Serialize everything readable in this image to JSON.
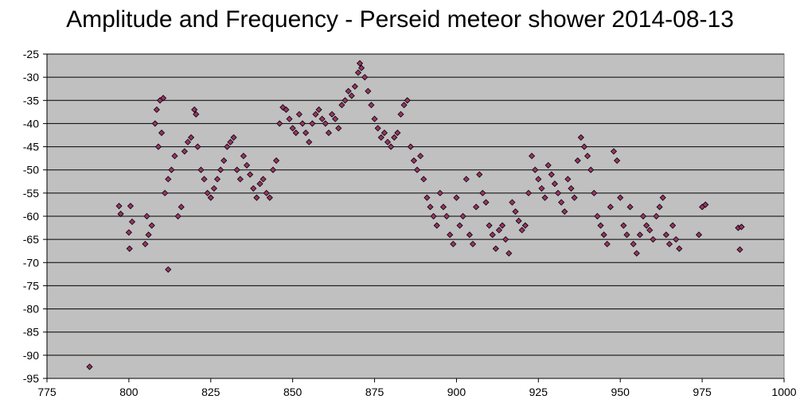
{
  "chart_data": {
    "type": "scatter",
    "title": "Amplitude and Frequency - Perseid meteor shower 2014-08-13",
    "xlabel": "",
    "ylabel": "",
    "xlim": [
      775,
      1000
    ],
    "ylim": [
      -95,
      -25
    ],
    "xticks": [
      775,
      800,
      825,
      850,
      875,
      900,
      925,
      950,
      975,
      1000
    ],
    "yticks": [
      -25,
      -30,
      -35,
      -40,
      -45,
      -50,
      -55,
      -60,
      -65,
      -70,
      -75,
      -80,
      -85,
      -90,
      -95
    ],
    "grid": "horizontal",
    "legend": "none",
    "plot_background": "#c0c0c0",
    "marker_fill": "#993366",
    "marker_edge": "#000000",
    "series": [
      {
        "points": [
          [
            788,
            -92.5
          ],
          [
            797,
            -57.8
          ],
          [
            797.5,
            -59.5
          ],
          [
            800,
            -63.5
          ],
          [
            800.2,
            -67
          ],
          [
            801,
            -61.2
          ],
          [
            800.5,
            -57.8
          ],
          [
            812,
            -71.5
          ],
          [
            805,
            -66
          ],
          [
            805.5,
            -60
          ],
          [
            806,
            -64
          ],
          [
            807,
            -62
          ],
          [
            808,
            -40
          ],
          [
            808.5,
            -37
          ],
          [
            809,
            -45
          ],
          [
            809.5,
            -35
          ],
          [
            810,
            -42
          ],
          [
            810.5,
            -34.5
          ],
          [
            811,
            -55
          ],
          [
            812,
            -52
          ],
          [
            813,
            -50
          ],
          [
            814,
            -47
          ],
          [
            815,
            -60
          ],
          [
            816,
            -58
          ],
          [
            817,
            -46
          ],
          [
            818,
            -44
          ],
          [
            819,
            -43
          ],
          [
            820,
            -37
          ],
          [
            820.5,
            -38
          ],
          [
            821,
            -45
          ],
          [
            822,
            -50
          ],
          [
            823,
            -52
          ],
          [
            824,
            -55
          ],
          [
            825,
            -56
          ],
          [
            826,
            -54
          ],
          [
            827,
            -52
          ],
          [
            828,
            -50
          ],
          [
            829,
            -48
          ],
          [
            830,
            -45
          ],
          [
            831,
            -44
          ],
          [
            832,
            -43
          ],
          [
            833,
            -50
          ],
          [
            834,
            -52
          ],
          [
            835,
            -47
          ],
          [
            836,
            -49
          ],
          [
            837,
            -51
          ],
          [
            838,
            -54
          ],
          [
            839,
            -56
          ],
          [
            840,
            -53
          ],
          [
            841,
            -52
          ],
          [
            842,
            -55
          ],
          [
            843,
            -56
          ],
          [
            844,
            -50
          ],
          [
            845,
            -48
          ],
          [
            846,
            -40
          ],
          [
            847,
            -36.5
          ],
          [
            848,
            -37
          ],
          [
            849,
            -39
          ],
          [
            850,
            -41
          ],
          [
            851,
            -42
          ],
          [
            852,
            -38
          ],
          [
            853,
            -40
          ],
          [
            854,
            -42
          ],
          [
            855,
            -44
          ],
          [
            856,
            -40
          ],
          [
            857,
            -38
          ],
          [
            858,
            -37
          ],
          [
            859,
            -39
          ],
          [
            860,
            -40
          ],
          [
            861,
            -42
          ],
          [
            862,
            -38
          ],
          [
            863,
            -39
          ],
          [
            864,
            -41
          ],
          [
            865,
            -36
          ],
          [
            866,
            -35
          ],
          [
            867,
            -33
          ],
          [
            868,
            -34
          ],
          [
            869,
            -32
          ],
          [
            870,
            -29
          ],
          [
            870.5,
            -27
          ],
          [
            871,
            -28
          ],
          [
            872,
            -30
          ],
          [
            873,
            -33
          ],
          [
            874,
            -36
          ],
          [
            875,
            -39
          ],
          [
            876,
            -41
          ],
          [
            877,
            -43
          ],
          [
            878,
            -42
          ],
          [
            879,
            -44
          ],
          [
            880,
            -45
          ],
          [
            881,
            -43
          ],
          [
            882,
            -42
          ],
          [
            883,
            -38
          ],
          [
            884,
            -36
          ],
          [
            885,
            -35
          ],
          [
            886,
            -45
          ],
          [
            887,
            -48
          ],
          [
            888,
            -50
          ],
          [
            889,
            -47
          ],
          [
            890,
            -52
          ],
          [
            891,
            -56
          ],
          [
            892,
            -58
          ],
          [
            893,
            -60
          ],
          [
            894,
            -62
          ],
          [
            895,
            -55
          ],
          [
            896,
            -58
          ],
          [
            897,
            -60
          ],
          [
            898,
            -64
          ],
          [
            899,
            -66
          ],
          [
            900,
            -56
          ],
          [
            901,
            -62
          ],
          [
            902,
            -60
          ],
          [
            903,
            -52
          ],
          [
            904,
            -64
          ],
          [
            905,
            -66
          ],
          [
            906,
            -58
          ],
          [
            907,
            -51
          ],
          [
            908,
            -55
          ],
          [
            909,
            -57
          ],
          [
            910,
            -62
          ],
          [
            911,
            -64
          ],
          [
            912,
            -67
          ],
          [
            913,
            -63
          ],
          [
            914,
            -62
          ],
          [
            915,
            -65
          ],
          [
            916,
            -68
          ],
          [
            917,
            -57
          ],
          [
            918,
            -59
          ],
          [
            919,
            -61
          ],
          [
            920,
            -63
          ],
          [
            921,
            -62
          ],
          [
            922,
            -55
          ],
          [
            923,
            -47
          ],
          [
            924,
            -50
          ],
          [
            925,
            -52
          ],
          [
            926,
            -54
          ],
          [
            927,
            -56
          ],
          [
            928,
            -49
          ],
          [
            929,
            -51
          ],
          [
            930,
            -53
          ],
          [
            931,
            -55
          ],
          [
            932,
            -57
          ],
          [
            933,
            -59
          ],
          [
            934,
            -52
          ],
          [
            935,
            -54
          ],
          [
            936,
            -56
          ],
          [
            937,
            -48
          ],
          [
            938,
            -43
          ],
          [
            939,
            -45
          ],
          [
            940,
            -47
          ],
          [
            941,
            -50
          ],
          [
            942,
            -55
          ],
          [
            943,
            -60
          ],
          [
            944,
            -62
          ],
          [
            945,
            -64
          ],
          [
            946,
            -66
          ],
          [
            947,
            -58
          ],
          [
            948,
            -46
          ],
          [
            949,
            -48
          ],
          [
            950,
            -56
          ],
          [
            951,
            -62
          ],
          [
            952,
            -64
          ],
          [
            953,
            -58
          ],
          [
            954,
            -66
          ],
          [
            955,
            -68
          ],
          [
            956,
            -64
          ],
          [
            957,
            -60
          ],
          [
            958,
            -62
          ],
          [
            959,
            -63
          ],
          [
            960,
            -65
          ],
          [
            961,
            -60
          ],
          [
            962,
            -58
          ],
          [
            963,
            -56
          ],
          [
            964,
            -64
          ],
          [
            965,
            -66
          ],
          [
            966,
            -62
          ],
          [
            967,
            -65
          ],
          [
            968,
            -67
          ],
          [
            974,
            -64
          ],
          [
            975,
            -58
          ],
          [
            976,
            -57.5
          ],
          [
            986,
            -62.5
          ],
          [
            986.5,
            -67.2
          ],
          [
            987,
            -62.3
          ]
        ]
      }
    ]
  }
}
